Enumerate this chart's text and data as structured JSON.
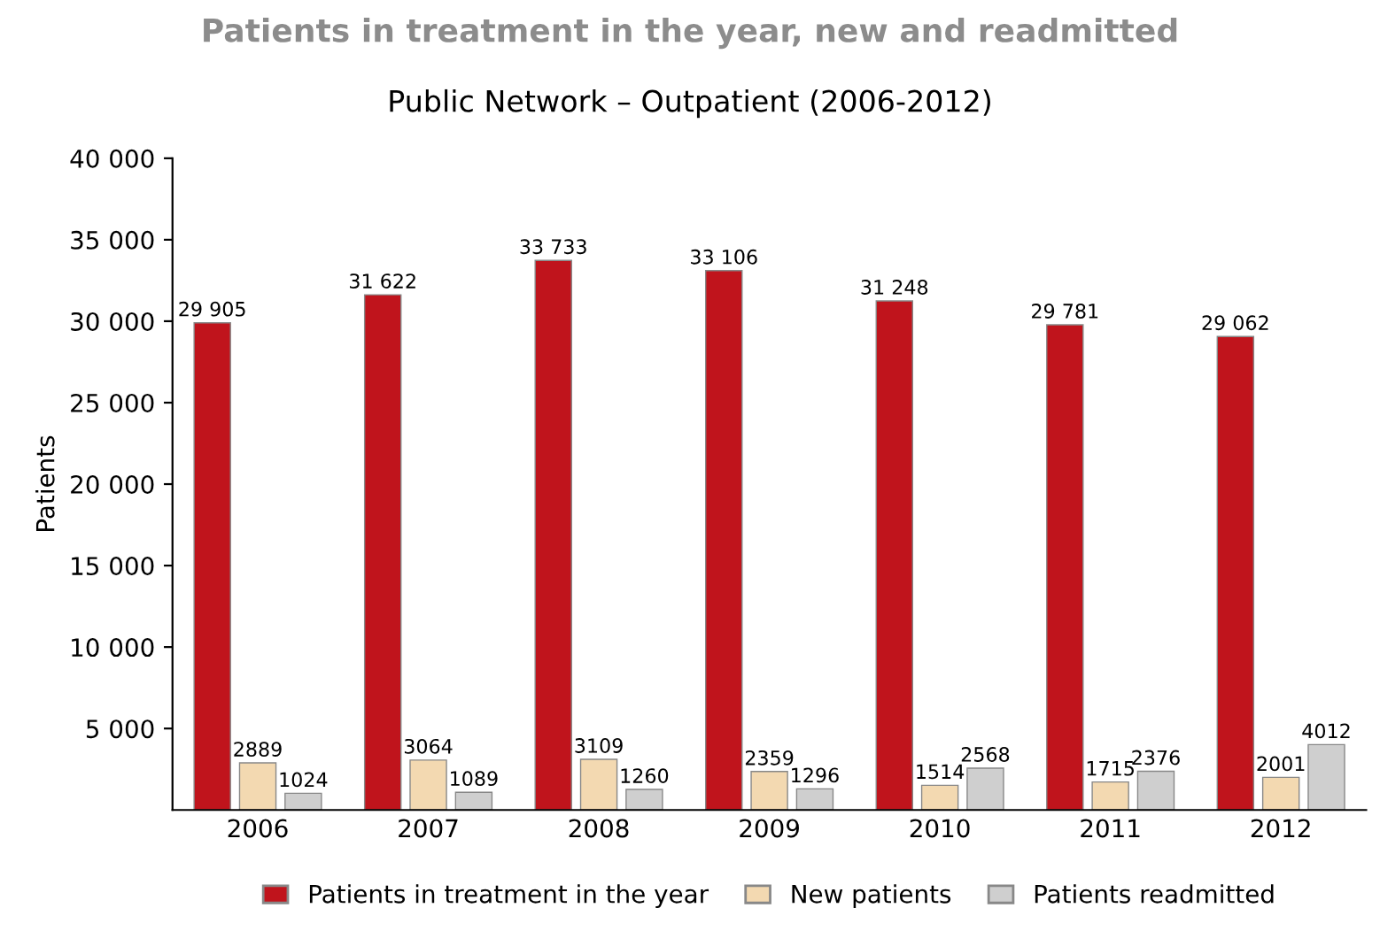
{
  "chart_data": {
    "type": "bar",
    "title": "Patients in treatment in the year, new and readmitted",
    "subtitle": "Public Network – Outpatient (2006-2012)",
    "ylabel": "Patients",
    "categories": [
      "2006",
      "2007",
      "2008",
      "2009",
      "2010",
      "2011",
      "2012"
    ],
    "series": [
      {
        "name": "Patients in treatment in the year",
        "color": "#c0141c",
        "values": [
          29905,
          31622,
          33733,
          33106,
          31248,
          29781,
          29062
        ],
        "value_labels": [
          "29 905",
          "31 622",
          "33 733",
          "33 106",
          "31 248",
          "29 781",
          "29 062"
        ]
      },
      {
        "name": "New patients",
        "color": "#f3d9b1",
        "values": [
          2889,
          3064,
          3109,
          2359,
          1514,
          1715,
          2001
        ],
        "value_labels": [
          "2889",
          "3064",
          "3109",
          "2359",
          "1514",
          "1715",
          "2001"
        ]
      },
      {
        "name": "Patients readmitted",
        "color": "#cfcfcf",
        "values": [
          1024,
          1089,
          1260,
          1296,
          2568,
          2376,
          4012
        ],
        "value_labels": [
          "1024",
          "1089",
          "1260",
          "1296",
          "2568",
          "2376",
          "4012"
        ]
      }
    ],
    "ylim": [
      0,
      40000
    ],
    "yticks": [
      {
        "value": 5000,
        "label": "5 000"
      },
      {
        "value": 10000,
        "label": "10 000"
      },
      {
        "value": 15000,
        "label": "15 000"
      },
      {
        "value": 20000,
        "label": "20 000"
      },
      {
        "value": 25000,
        "label": "25 000"
      },
      {
        "value": 30000,
        "label": "30 000"
      },
      {
        "value": 35000,
        "label": "35 000"
      },
      {
        "value": 40000,
        "label": "40 000"
      }
    ],
    "grid": false,
    "legend": "bottom"
  }
}
